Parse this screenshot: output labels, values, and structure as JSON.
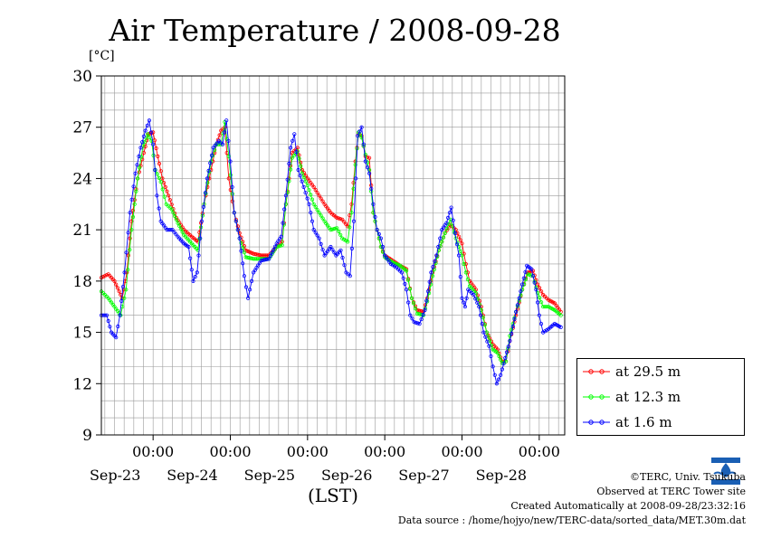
{
  "title": "Air Temperature / 2008-09-28",
  "unit_label": "[°C]",
  "x_axis_label": "(LST)",
  "logo_icon": "terc-logo-icon",
  "credits": {
    "copyright": "©TERC, Univ. Tsukuba",
    "observed": "Observed at TERC Tower site",
    "created": "Created Automatically at 2008-09-28/23:32:16",
    "source": "Data source : /home/hojyo/new/TERC-data/sorted_data/MET.30m.dat"
  },
  "chart_data": {
    "type": "line",
    "title": "Air Temperature / 2008-09-28",
    "xlabel": "(LST)",
    "ylabel": "[°C]",
    "x_units": "days from 2008-09-22 00:00 LST",
    "xlim": [
      0.33,
      6.33
    ],
    "ylim": [
      9,
      30
    ],
    "yticks": [
      9,
      12,
      15,
      18,
      21,
      24,
      27,
      30
    ],
    "xtick_labels": [
      {
        "x": 1,
        "time": "00:00",
        "date": "Sep-23"
      },
      {
        "x": 2,
        "time": "00:00",
        "date": "Sep-24"
      },
      {
        "x": 3,
        "time": "00:00",
        "date": "Sep-25"
      },
      {
        "x": 4,
        "time": "00:00",
        "date": "Sep-26"
      },
      {
        "x": 5,
        "time": "00:00",
        "date": "Sep-27"
      },
      {
        "x": 6,
        "time": "00:00",
        "date": "Sep-28"
      }
    ],
    "grid": true,
    "legend_position": "right",
    "series": [
      {
        "name": "at 29.5 m",
        "color": "#ff0000",
        "points": [
          [
            0.33,
            18.2
          ],
          [
            0.42,
            18.4
          ],
          [
            0.5,
            18.0
          ],
          [
            0.6,
            17.0
          ],
          [
            0.66,
            18.5
          ],
          [
            0.72,
            21.5
          ],
          [
            0.8,
            24.0
          ],
          [
            0.88,
            25.5
          ],
          [
            0.94,
            26.6
          ],
          [
            1.0,
            26.7
          ],
          [
            1.06,
            25.3
          ],
          [
            1.12,
            24.0
          ],
          [
            1.2,
            23.0
          ],
          [
            1.3,
            21.7
          ],
          [
            1.4,
            21.0
          ],
          [
            1.5,
            20.6
          ],
          [
            1.58,
            20.3
          ],
          [
            1.66,
            22.5
          ],
          [
            1.75,
            24.5
          ],
          [
            1.82,
            26.0
          ],
          [
            1.88,
            26.8
          ],
          [
            1.93,
            27.0
          ],
          [
            1.98,
            24.0
          ],
          [
            2.05,
            22.0
          ],
          [
            2.12,
            20.8
          ],
          [
            2.2,
            19.8
          ],
          [
            2.3,
            19.6
          ],
          [
            2.4,
            19.5
          ],
          [
            2.5,
            19.5
          ],
          [
            2.6,
            20.0
          ],
          [
            2.67,
            20.3
          ],
          [
            2.72,
            22.5
          ],
          [
            2.8,
            25.5
          ],
          [
            2.87,
            25.8
          ],
          [
            2.93,
            24.5
          ],
          [
            3.0,
            24.0
          ],
          [
            3.08,
            23.5
          ],
          [
            3.15,
            23.0
          ],
          [
            3.22,
            22.5
          ],
          [
            3.3,
            22.0
          ],
          [
            3.38,
            21.7
          ],
          [
            3.45,
            21.6
          ],
          [
            3.52,
            21.2
          ],
          [
            3.57,
            22.5
          ],
          [
            3.62,
            25.0
          ],
          [
            3.66,
            26.6
          ],
          [
            3.7,
            26.5
          ],
          [
            3.75,
            25.3
          ],
          [
            3.8,
            25.2
          ],
          [
            3.85,
            22.0
          ],
          [
            3.9,
            21.0
          ],
          [
            3.95,
            20.0
          ],
          [
            4.0,
            19.5
          ],
          [
            4.1,
            19.2
          ],
          [
            4.2,
            18.9
          ],
          [
            4.28,
            18.7
          ],
          [
            4.35,
            17.0
          ],
          [
            4.42,
            16.3
          ],
          [
            4.5,
            16.2
          ],
          [
            4.55,
            17.0
          ],
          [
            4.62,
            18.5
          ],
          [
            4.7,
            19.8
          ],
          [
            4.78,
            20.8
          ],
          [
            4.85,
            21.3
          ],
          [
            4.92,
            21.0
          ],
          [
            5.0,
            20.2
          ],
          [
            5.05,
            19.0
          ],
          [
            5.1,
            18.0
          ],
          [
            5.18,
            17.5
          ],
          [
            5.25,
            16.5
          ],
          [
            5.32,
            15.0
          ],
          [
            5.4,
            14.3
          ],
          [
            5.46,
            14.0
          ],
          [
            5.52,
            13.3
          ],
          [
            5.57,
            13.3
          ],
          [
            5.62,
            14.5
          ],
          [
            5.7,
            16.0
          ],
          [
            5.78,
            17.5
          ],
          [
            5.85,
            18.5
          ],
          [
            5.92,
            18.6
          ],
          [
            5.98,
            17.8
          ],
          [
            6.05,
            17.2
          ],
          [
            6.12,
            16.9
          ],
          [
            6.2,
            16.7
          ],
          [
            6.28,
            16.2
          ]
        ]
      },
      {
        "name": "at 12.3 m",
        "color": "#00ff00",
        "points": [
          [
            0.33,
            17.4
          ],
          [
            0.42,
            17.0
          ],
          [
            0.5,
            16.5
          ],
          [
            0.58,
            16.0
          ],
          [
            0.65,
            17.5
          ],
          [
            0.72,
            21.0
          ],
          [
            0.8,
            24.0
          ],
          [
            0.87,
            25.9
          ],
          [
            0.93,
            26.6
          ],
          [
            0.98,
            26.2
          ],
          [
            1.03,
            24.5
          ],
          [
            1.1,
            23.8
          ],
          [
            1.17,
            22.5
          ],
          [
            1.24,
            22.2
          ],
          [
            1.32,
            21.4
          ],
          [
            1.4,
            20.7
          ],
          [
            1.5,
            20.2
          ],
          [
            1.58,
            19.8
          ],
          [
            1.66,
            22.5
          ],
          [
            1.75,
            25.0
          ],
          [
            1.82,
            26.0
          ],
          [
            1.88,
            26.0
          ],
          [
            1.93,
            27.3
          ],
          [
            1.98,
            25.3
          ],
          [
            2.05,
            22.0
          ],
          [
            2.12,
            20.5
          ],
          [
            2.2,
            19.4
          ],
          [
            2.3,
            19.3
          ],
          [
            2.4,
            19.3
          ],
          [
            2.5,
            19.3
          ],
          [
            2.6,
            20.0
          ],
          [
            2.67,
            20.1
          ],
          [
            2.72,
            22.5
          ],
          [
            2.8,
            25.2
          ],
          [
            2.87,
            25.6
          ],
          [
            2.93,
            24.3
          ],
          [
            3.0,
            23.6
          ],
          [
            3.08,
            22.5
          ],
          [
            3.15,
            22.0
          ],
          [
            3.22,
            21.5
          ],
          [
            3.3,
            21.0
          ],
          [
            3.38,
            21.1
          ],
          [
            3.45,
            20.5
          ],
          [
            3.52,
            20.3
          ],
          [
            3.57,
            22.0
          ],
          [
            3.62,
            24.8
          ],
          [
            3.66,
            26.7
          ],
          [
            3.7,
            26.4
          ],
          [
            3.75,
            25.4
          ],
          [
            3.8,
            24.5
          ],
          [
            3.85,
            22.0
          ],
          [
            3.9,
            21.0
          ],
          [
            3.95,
            20.0
          ],
          [
            4.0,
            19.4
          ],
          [
            4.1,
            19.1
          ],
          [
            4.2,
            18.9
          ],
          [
            4.28,
            18.6
          ],
          [
            4.35,
            17.0
          ],
          [
            4.42,
            16.1
          ],
          [
            4.5,
            16.0
          ],
          [
            4.55,
            16.8
          ],
          [
            4.62,
            18.3
          ],
          [
            4.7,
            19.8
          ],
          [
            4.78,
            20.8
          ],
          [
            4.85,
            21.6
          ],
          [
            4.92,
            20.5
          ],
          [
            5.0,
            19.5
          ],
          [
            5.05,
            18.5
          ],
          [
            5.1,
            17.7
          ],
          [
            5.18,
            17.3
          ],
          [
            5.25,
            16.3
          ],
          [
            5.32,
            15.0
          ],
          [
            5.4,
            14.0
          ],
          [
            5.46,
            13.8
          ],
          [
            5.52,
            13.2
          ],
          [
            5.57,
            13.3
          ],
          [
            5.62,
            14.8
          ],
          [
            5.7,
            16.2
          ],
          [
            5.78,
            17.5
          ],
          [
            5.85,
            18.4
          ],
          [
            5.92,
            18.3
          ],
          [
            5.98,
            17.3
          ],
          [
            6.05,
            16.5
          ],
          [
            6.12,
            16.5
          ],
          [
            6.2,
            16.3
          ],
          [
            6.28,
            16.0
          ]
        ]
      },
      {
        "name": "at 1.6 m",
        "color": "#0000ff",
        "points": [
          [
            0.33,
            16.0
          ],
          [
            0.4,
            16.0
          ],
          [
            0.46,
            15.0
          ],
          [
            0.52,
            14.7
          ],
          [
            0.57,
            16.0
          ],
          [
            0.63,
            18.5
          ],
          [
            0.7,
            22.0
          ],
          [
            0.77,
            24.3
          ],
          [
            0.84,
            25.8
          ],
          [
            0.9,
            26.8
          ],
          [
            0.95,
            27.4
          ],
          [
            1.0,
            26.0
          ],
          [
            1.05,
            23.0
          ],
          [
            1.1,
            21.5
          ],
          [
            1.18,
            21.0
          ],
          [
            1.25,
            21.0
          ],
          [
            1.32,
            20.6
          ],
          [
            1.4,
            20.2
          ],
          [
            1.46,
            20.0
          ],
          [
            1.52,
            18.0
          ],
          [
            1.57,
            18.5
          ],
          [
            1.63,
            21.5
          ],
          [
            1.7,
            24.0
          ],
          [
            1.78,
            25.8
          ],
          [
            1.85,
            26.2
          ],
          [
            1.9,
            26.0
          ],
          [
            1.95,
            27.4
          ],
          [
            2.0,
            25.0
          ],
          [
            2.05,
            22.0
          ],
          [
            2.12,
            20.5
          ],
          [
            2.18,
            18.3
          ],
          [
            2.23,
            17.0
          ],
          [
            2.3,
            18.5
          ],
          [
            2.4,
            19.2
          ],
          [
            2.5,
            19.3
          ],
          [
            2.6,
            20.2
          ],
          [
            2.66,
            20.6
          ],
          [
            2.72,
            23.0
          ],
          [
            2.78,
            25.8
          ],
          [
            2.83,
            26.6
          ],
          [
            2.88,
            24.5
          ],
          [
            2.95,
            23.5
          ],
          [
            3.02,
            22.5
          ],
          [
            3.08,
            21.0
          ],
          [
            3.15,
            20.5
          ],
          [
            3.22,
            19.5
          ],
          [
            3.3,
            20.0
          ],
          [
            3.37,
            19.5
          ],
          [
            3.43,
            19.8
          ],
          [
            3.5,
            18.5
          ],
          [
            3.55,
            18.3
          ],
          [
            3.6,
            21.5
          ],
          [
            3.65,
            26.5
          ],
          [
            3.7,
            27.0
          ],
          [
            3.75,
            25.0
          ],
          [
            3.8,
            24.3
          ],
          [
            3.85,
            22.5
          ],
          [
            3.9,
            21.0
          ],
          [
            3.95,
            20.5
          ],
          [
            4.0,
            19.5
          ],
          [
            4.08,
            19.0
          ],
          [
            4.15,
            18.8
          ],
          [
            4.22,
            18.5
          ],
          [
            4.28,
            17.5
          ],
          [
            4.33,
            16.0
          ],
          [
            4.38,
            15.6
          ],
          [
            4.45,
            15.5
          ],
          [
            4.52,
            16.3
          ],
          [
            4.6,
            18.5
          ],
          [
            4.67,
            19.5
          ],
          [
            4.74,
            21.0
          ],
          [
            4.8,
            21.4
          ],
          [
            4.86,
            22.3
          ],
          [
            4.91,
            20.8
          ],
          [
            4.96,
            19.5
          ],
          [
            5.0,
            17.0
          ],
          [
            5.04,
            16.5
          ],
          [
            5.08,
            17.5
          ],
          [
            5.15,
            17.2
          ],
          [
            5.22,
            16.5
          ],
          [
            5.28,
            15.0
          ],
          [
            5.35,
            14.2
          ],
          [
            5.4,
            13.0
          ],
          [
            5.45,
            12.0
          ],
          [
            5.5,
            12.5
          ],
          [
            5.56,
            13.5
          ],
          [
            5.62,
            14.5
          ],
          [
            5.7,
            16.2
          ],
          [
            5.78,
            17.8
          ],
          [
            5.84,
            18.9
          ],
          [
            5.9,
            18.7
          ],
          [
            5.96,
            17.5
          ],
          [
            6.0,
            16.0
          ],
          [
            6.05,
            15.0
          ],
          [
            6.12,
            15.2
          ],
          [
            6.2,
            15.5
          ],
          [
            6.28,
            15.3
          ]
        ]
      }
    ]
  }
}
